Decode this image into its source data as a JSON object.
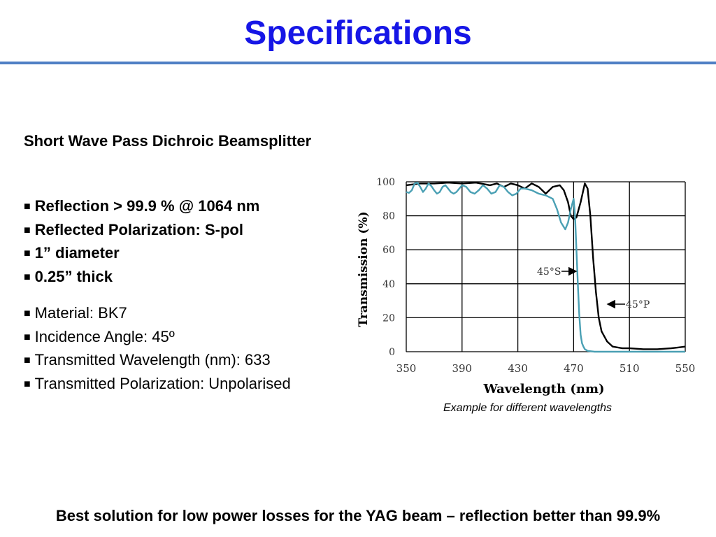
{
  "title": "Specifications",
  "subtitle": "Short Wave Pass Dichroic Beamsplitter",
  "bold_bullets": [
    "Reflection > 99.9 % @ 1064 nm",
    "Reflected Polarization: S-pol",
    "1” diameter",
    "0.25” thick"
  ],
  "normal_bullets": [
    "Material: BK7",
    "Incidence Angle: 45º",
    "Transmitted Wavelength (nm): 633",
    "Transmitted Polarization: Unpolarised"
  ],
  "bullet_marker": "■",
  "caption": "Example for different wavelengths",
  "footer": "Best solution for low power losses for the YAG beam – reflection better than 99.9%",
  "colors": {
    "title": "#1616e6",
    "rule": "#4f7fc4",
    "s_curve": "#4aa0b4",
    "p_curve": "#000000"
  },
  "chart_data": {
    "type": "line",
    "xlabel": "Wavelength (nm)",
    "ylabel": "Transmission (%)",
    "xlim": [
      350,
      550
    ],
    "ylim": [
      0,
      100
    ],
    "x_ticks": [
      350,
      390,
      430,
      470,
      510,
      550
    ],
    "y_ticks": [
      0,
      20,
      40,
      60,
      80,
      100
    ],
    "grid": true,
    "series": [
      {
        "name": "45°P",
        "color": "#000000",
        "x": [
          350,
          360,
          370,
          380,
          390,
          400,
          410,
          415,
          420,
          425,
          430,
          435,
          440,
          445,
          450,
          455,
          460,
          463,
          466,
          468,
          470,
          472,
          475,
          478,
          480,
          482,
          484,
          486,
          488,
          490,
          494,
          498,
          505,
          510,
          520,
          530,
          540,
          545,
          550
        ],
        "y": [
          98,
          99,
          99,
          99.5,
          99,
          99.5,
          98,
          99,
          97,
          99,
          98,
          96,
          99,
          97,
          93,
          97,
          98,
          95,
          88,
          80,
          78,
          79,
          88,
          99,
          96,
          80,
          55,
          35,
          20,
          12,
          6,
          3,
          2,
          2,
          1.5,
          1.5,
          2,
          2.5,
          3
        ]
      },
      {
        "name": "45°S",
        "color": "#4aa0b4",
        "x": [
          350,
          352,
          354,
          356,
          358,
          360,
          362,
          364,
          366,
          368,
          370,
          372,
          374,
          376,
          378,
          380,
          382,
          384,
          386,
          388,
          390,
          393,
          396,
          399,
          402,
          405,
          408,
          411,
          414,
          417,
          420,
          423,
          426,
          429,
          432,
          435,
          440,
          445,
          450,
          455,
          458,
          461,
          464,
          466,
          468,
          470,
          471,
          472,
          473,
          474,
          475,
          476,
          477,
          478,
          480,
          485,
          490,
          500,
          550
        ],
        "y": [
          94,
          93.5,
          95,
          99,
          99.5,
          97,
          94,
          96,
          99,
          97.5,
          95,
          93,
          94,
          97,
          98,
          96,
          94,
          93,
          94,
          96,
          98,
          97,
          94,
          93,
          95,
          98,
          96,
          93,
          94,
          98,
          97,
          94,
          92,
          93,
          96,
          96,
          95,
          93,
          92,
          90,
          84,
          76,
          72,
          76,
          84,
          90,
          80,
          60,
          40,
          22,
          10,
          5,
          3,
          1.5,
          0.5,
          0,
          0,
          0,
          0
        ]
      }
    ],
    "annotations": [
      "45°S",
      "45°P"
    ]
  }
}
